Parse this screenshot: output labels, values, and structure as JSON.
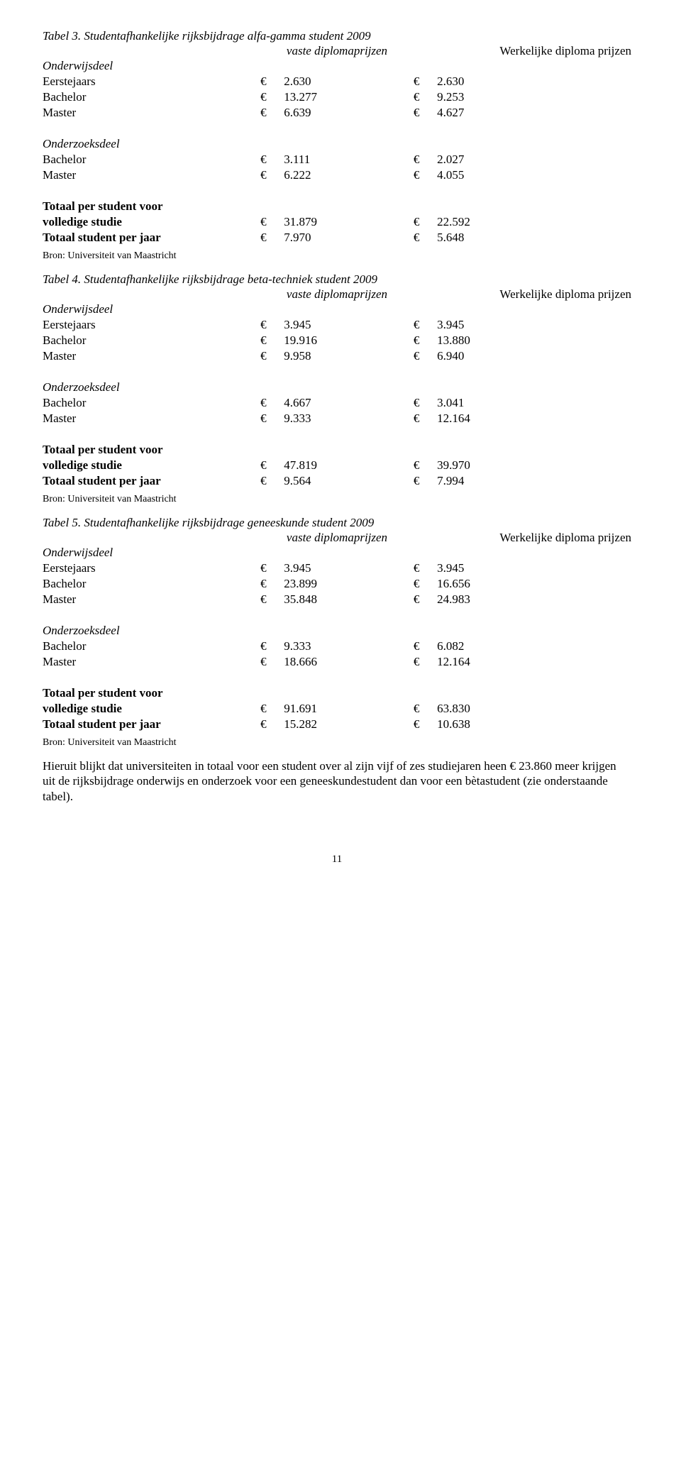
{
  "columns": {
    "vaste": "vaste diplomaprijzen",
    "werkelijke": "Werkelijke diploma prijzen"
  },
  "labels": {
    "onderwijsdeel": "Onderwijsdeel",
    "onderzoeksdeel": "Onderzoeksdeel",
    "eerstejaars": "Eerstejaars",
    "bachelor": "Bachelor",
    "master": "Master",
    "totaal_voor": "Totaal per student voor",
    "volledige": "volledige studie",
    "totaal_jaar": "Totaal student per jaar",
    "bron": "Bron: Universiteit van Maastricht",
    "euro": "€"
  },
  "tabel3": {
    "title": "Tabel 3. Studentafhankelijke rijksbijdrage alfa-gamma student 2009",
    "owd": {
      "eerste": [
        "2.630",
        "2.630"
      ],
      "bach": [
        "13.277",
        "9.253"
      ],
      "mast": [
        "6.639",
        "4.627"
      ]
    },
    "ozd": {
      "bach": [
        "3.111",
        "2.027"
      ],
      "mast": [
        "6.222",
        "4.055"
      ]
    },
    "totaal": {
      "studie": [
        "31.879",
        "22.592"
      ],
      "jaar": [
        "7.970",
        "5.648"
      ]
    }
  },
  "tabel4": {
    "title": "Tabel 4. Studentafhankelijke rijksbijdrage beta-techniek student 2009",
    "owd": {
      "eerste": [
        "3.945",
        "3.945"
      ],
      "bach": [
        "19.916",
        "13.880"
      ],
      "mast": [
        "9.958",
        "6.940"
      ]
    },
    "ozd": {
      "bach": [
        "4.667",
        "3.041"
      ],
      "mast": [
        "9.333",
        "12.164"
      ]
    },
    "totaal": {
      "studie": [
        "47.819",
        "39.970"
      ],
      "jaar": [
        "9.564",
        "7.994"
      ]
    }
  },
  "tabel5": {
    "title": "Tabel 5. Studentafhankelijke rijksbijdrage geneeskunde student 2009",
    "owd": {
      "eerste": [
        "3.945",
        "3.945"
      ],
      "bach": [
        "23.899",
        "16.656"
      ],
      "mast": [
        "35.848",
        "24.983"
      ]
    },
    "ozd": {
      "bach": [
        "9.333",
        "6.082"
      ],
      "mast": [
        "18.666",
        "12.164"
      ]
    },
    "totaal": {
      "studie": [
        "91.691",
        "63.830"
      ],
      "jaar": [
        "15.282",
        "10.638"
      ]
    }
  },
  "body_text": "Hieruit blijkt dat universiteiten in totaal voor een student over al zijn vijf of zes studiejaren heen € 23.860 meer krijgen uit de rijksbijdrage onderwijs en onderzoek voor een geneeskundestudent dan voor een bètastudent (zie onderstaande tabel).",
  "page_number": "11"
}
